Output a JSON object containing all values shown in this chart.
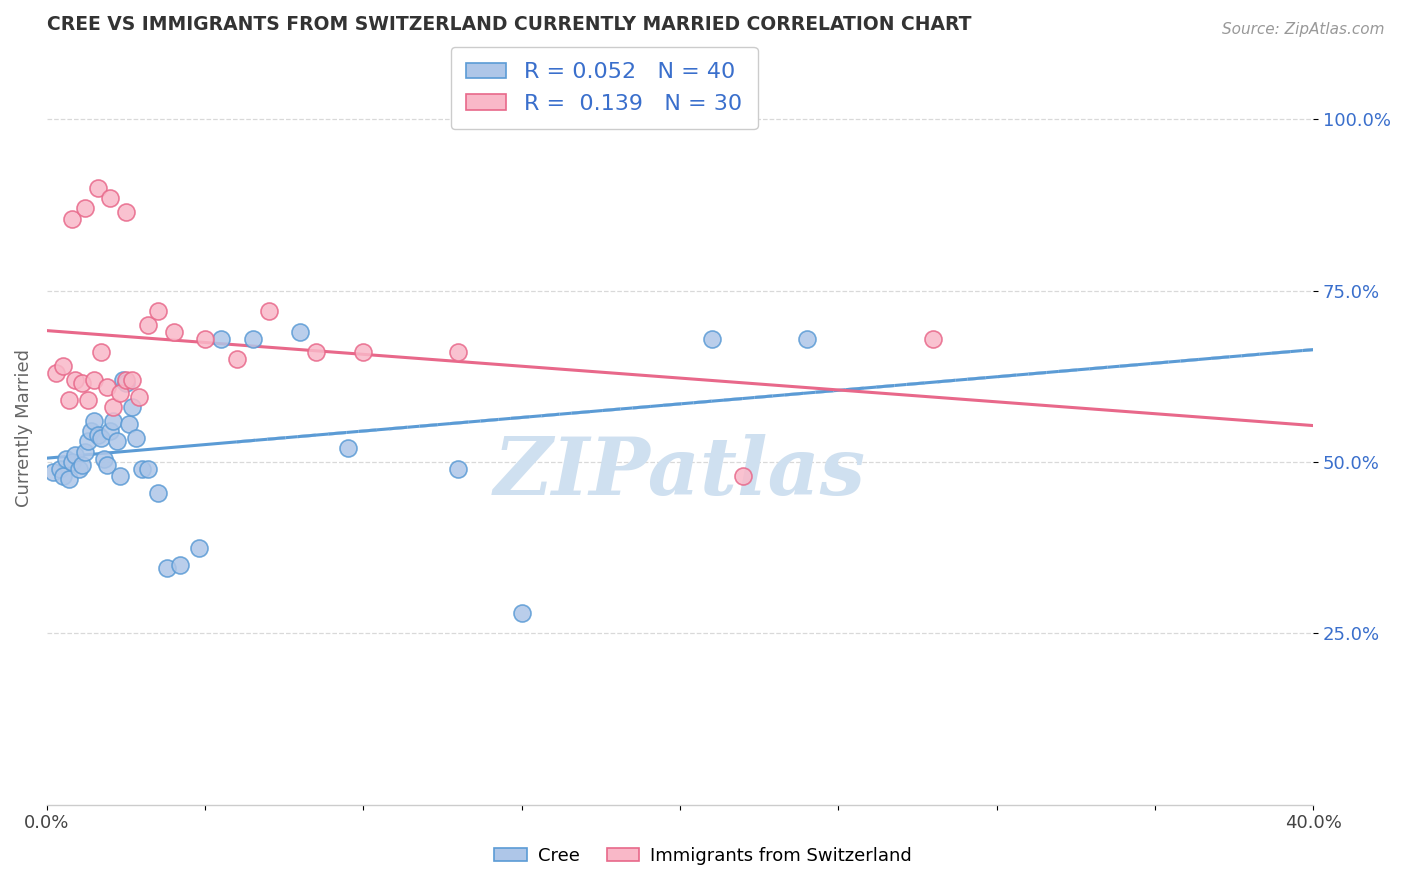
{
  "title": "CREE VS IMMIGRANTS FROM SWITZERLAND CURRENTLY MARRIED CORRELATION CHART",
  "source": "Source: ZipAtlas.com",
  "ylabel": "Currently Married",
  "ytick_labels": [
    "100.0%",
    "75.0%",
    "50.0%",
    "25.0%"
  ],
  "ytick_values": [
    1.0,
    0.75,
    0.5,
    0.25
  ],
  "xlim": [
    0.0,
    0.4
  ],
  "ylim": [
    0.0,
    1.1
  ],
  "legend_r1": "R = 0.052",
  "legend_n1": "N = 40",
  "legend_r2": "R =  0.139",
  "legend_n2": "N = 30",
  "cree_color": "#aec6e8",
  "swiss_color": "#f9b8c8",
  "cree_line_color": "#5b9bd5",
  "swiss_line_color": "#e8688a",
  "legend_text_color": "#3a6fcc",
  "title_color": "#333333",
  "watermark": "ZIPatlas",
  "watermark_color": "#cfe0f0",
  "grid_color": "#d0d0d0",
  "cree_scatter_x": [
    0.002,
    0.004,
    0.005,
    0.006,
    0.007,
    0.008,
    0.009,
    0.01,
    0.011,
    0.012,
    0.013,
    0.014,
    0.015,
    0.016,
    0.017,
    0.018,
    0.019,
    0.02,
    0.021,
    0.022,
    0.023,
    0.024,
    0.025,
    0.026,
    0.027,
    0.028,
    0.03,
    0.032,
    0.035,
    0.038,
    0.042,
    0.048,
    0.055,
    0.065,
    0.08,
    0.095,
    0.13,
    0.15,
    0.21,
    0.24
  ],
  "cree_scatter_y": [
    0.485,
    0.49,
    0.48,
    0.505,
    0.475,
    0.5,
    0.51,
    0.49,
    0.495,
    0.515,
    0.53,
    0.545,
    0.56,
    0.54,
    0.535,
    0.505,
    0.495,
    0.545,
    0.56,
    0.53,
    0.48,
    0.62,
    0.615,
    0.555,
    0.58,
    0.535,
    0.49,
    0.49,
    0.455,
    0.345,
    0.35,
    0.375,
    0.68,
    0.68,
    0.69,
    0.52,
    0.49,
    0.28,
    0.68,
    0.68
  ],
  "swiss_scatter_x": [
    0.003,
    0.005,
    0.007,
    0.009,
    0.011,
    0.013,
    0.015,
    0.017,
    0.019,
    0.021,
    0.023,
    0.025,
    0.027,
    0.029,
    0.032,
    0.035,
    0.04,
    0.05,
    0.06,
    0.07,
    0.085,
    0.1,
    0.13,
    0.22,
    0.28,
    0.008,
    0.012,
    0.016,
    0.02,
    0.025
  ],
  "swiss_scatter_y": [
    0.63,
    0.64,
    0.59,
    0.62,
    0.615,
    0.59,
    0.62,
    0.66,
    0.61,
    0.58,
    0.6,
    0.62,
    0.62,
    0.595,
    0.7,
    0.72,
    0.69,
    0.68,
    0.65,
    0.72,
    0.66,
    0.66,
    0.66,
    0.48,
    0.68,
    0.855,
    0.87,
    0.9,
    0.885,
    0.865
  ]
}
